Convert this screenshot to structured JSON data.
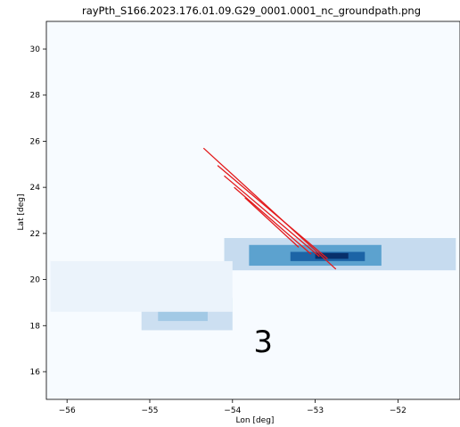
{
  "chart_data": {
    "type": "heatmap",
    "title": "rayPth_S166.2023.176.01.09.G29_0001.0001_nc_groundpath.png",
    "xlabel": "Lon [deg]",
    "ylabel": "Lat [deg]",
    "xlim": [
      -56.25,
      -51.25
    ],
    "ylim": [
      14.8,
      31.2
    ],
    "xticks": [
      -56,
      -55,
      -54,
      -53,
      -52
    ],
    "yticks": [
      16,
      18,
      20,
      22,
      24,
      26,
      28,
      30
    ],
    "grid": false,
    "background_color": "#f7fbff",
    "colormap": "Blues",
    "heatmap_regions": [
      {
        "lon": [
          -54.1,
          -51.3
        ],
        "lat": [
          20.4,
          21.8
        ],
        "level": 0.25
      },
      {
        "lon": [
          -53.8,
          -52.2
        ],
        "lat": [
          20.6,
          21.5
        ],
        "level": 0.55
      },
      {
        "lon": [
          -53.3,
          -52.4
        ],
        "lat": [
          20.8,
          21.2
        ],
        "level": 0.8
      },
      {
        "lon": [
          -53.0,
          -52.6
        ],
        "lat": [
          20.9,
          21.15
        ],
        "level": 1.0
      },
      {
        "lon": [
          -55.1,
          -54.0
        ],
        "lat": [
          17.8,
          19.2
        ],
        "level": 0.22
      },
      {
        "lon": [
          -54.9,
          -54.3
        ],
        "lat": [
          18.2,
          18.8
        ],
        "level": 0.35
      },
      {
        "lon": [
          -56.2,
          -54.0
        ],
        "lat": [
          18.6,
          20.8
        ],
        "level": 0.06
      }
    ],
    "ray_paths": [
      {
        "start": [
          -54.35,
          25.7
        ],
        "end": [
          -52.75,
          20.45
        ]
      },
      {
        "start": [
          -54.18,
          24.95
        ],
        "end": [
          -52.85,
          20.9
        ]
      },
      {
        "start": [
          -54.1,
          24.5
        ],
        "end": [
          -52.95,
          21.0
        ]
      },
      {
        "start": [
          -53.98,
          24.0
        ],
        "end": [
          -53.05,
          21.1
        ]
      },
      {
        "start": [
          -53.85,
          23.55
        ],
        "end": [
          -53.2,
          21.4
        ]
      }
    ],
    "ray_color": "#e31a1c",
    "annotations": [
      {
        "text": "3",
        "lon": -53.63,
        "lat": 16.85
      }
    ]
  }
}
